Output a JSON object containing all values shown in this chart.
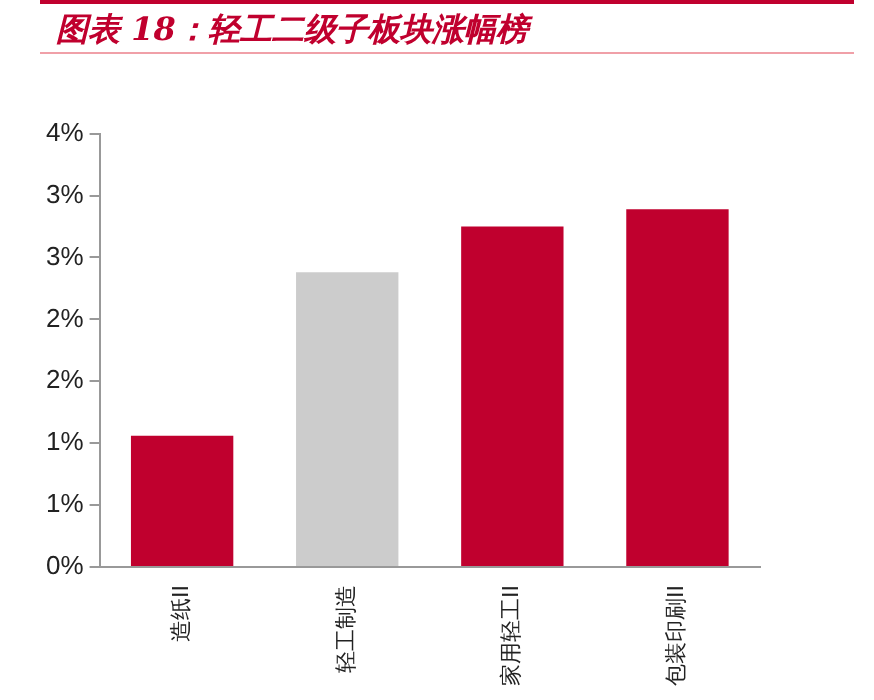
{
  "chart_data": {
    "type": "bar",
    "title": "图表 18：轻工二级子板块涨幅榜",
    "categories": [
      "造纸II",
      "轻工制造",
      "家用轻工II",
      "包装印刷II"
    ],
    "values": [
      1.06,
      2.38,
      2.75,
      2.89
    ],
    "colors": [
      "#c0002e",
      "#cccccc",
      "#c0002e",
      "#c0002e"
    ],
    "ylim": [
      0,
      3.5
    ],
    "yticks": [
      {
        "value": 0,
        "label": "0%"
      },
      {
        "value": 0.5,
        "label": "1%"
      },
      {
        "value": 1,
        "label": "1%"
      },
      {
        "value": 1.5,
        "label": "2%"
      },
      {
        "value": 2,
        "label": "2%"
      },
      {
        "value": 2.5,
        "label": "3%"
      },
      {
        "value": 3,
        "label": "3%"
      },
      {
        "value": 3.5,
        "label": "4%"
      }
    ],
    "grid": false,
    "legend": false
  }
}
